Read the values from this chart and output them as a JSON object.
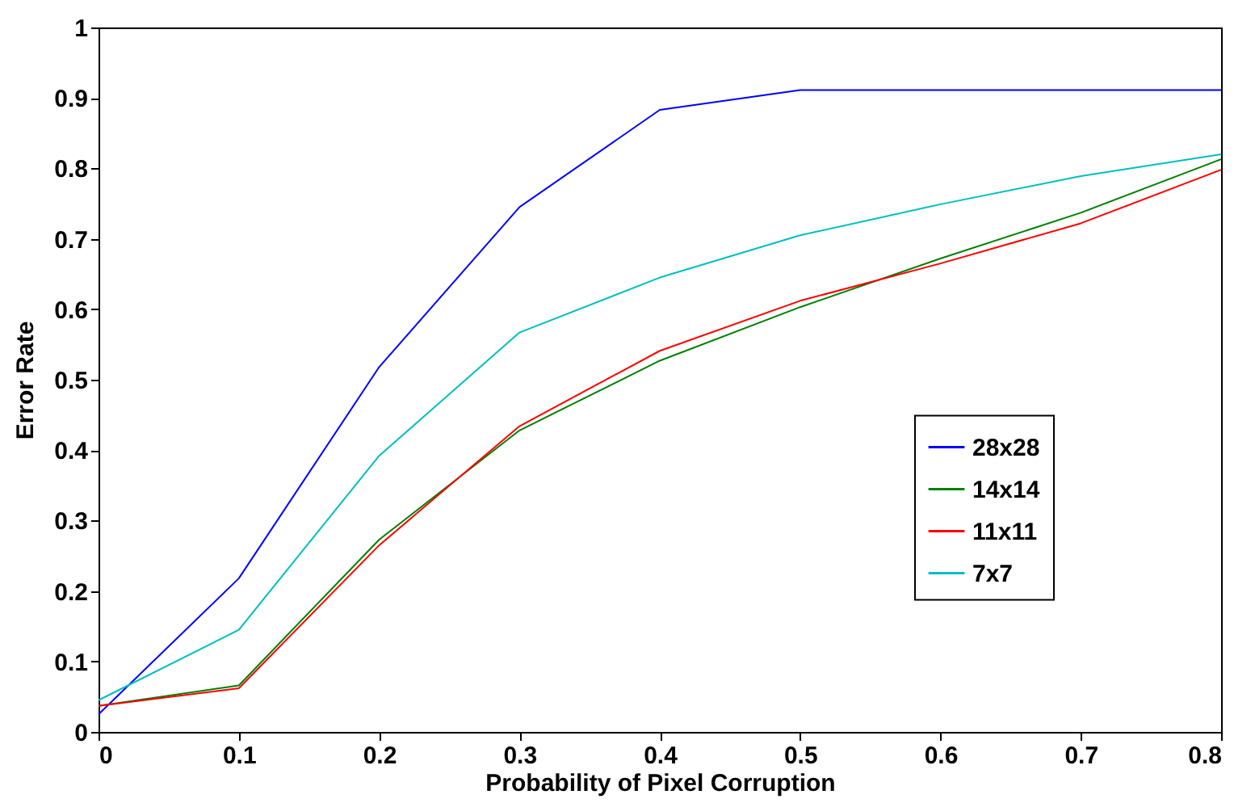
{
  "chart_data": {
    "type": "line",
    "xlabel": "Probability of Pixel Corruption",
    "ylabel": "Error Rate",
    "x": [
      0,
      0.1,
      0.2,
      0.3,
      0.4,
      0.5,
      0.6,
      0.7,
      0.8
    ],
    "series": [
      {
        "name": "28x28",
        "color": "#0000ff",
        "values": [
          0.025,
          0.218,
          0.518,
          0.745,
          0.883,
          0.911,
          0.911,
          0.911,
          0.911
        ]
      },
      {
        "name": "14x14",
        "color": "#008000",
        "values": [
          0.037,
          0.066,
          0.273,
          0.428,
          0.527,
          0.603,
          0.672,
          0.737,
          0.813
        ]
      },
      {
        "name": "11x11",
        "color": "#ff0000",
        "values": [
          0.037,
          0.062,
          0.265,
          0.434,
          0.541,
          0.612,
          0.665,
          0.722,
          0.798
        ]
      },
      {
        "name": "7x7",
        "color": "#00bfbf",
        "values": [
          0.045,
          0.145,
          0.392,
          0.567,
          0.645,
          0.705,
          0.749,
          0.789,
          0.82
        ]
      }
    ],
    "xlim": [
      0,
      0.8
    ],
    "xticks": [
      0,
      0.1,
      0.2,
      0.3,
      0.4,
      0.5,
      0.6,
      0.7,
      0.8
    ],
    "ylim": [
      0,
      1
    ],
    "yticks": [
      0,
      0.1,
      0.2,
      0.3,
      0.4,
      0.5,
      0.6,
      0.7,
      0.8,
      0.9,
      1
    ],
    "legend": "right",
    "line_style": "solid",
    "marker": "none"
  }
}
